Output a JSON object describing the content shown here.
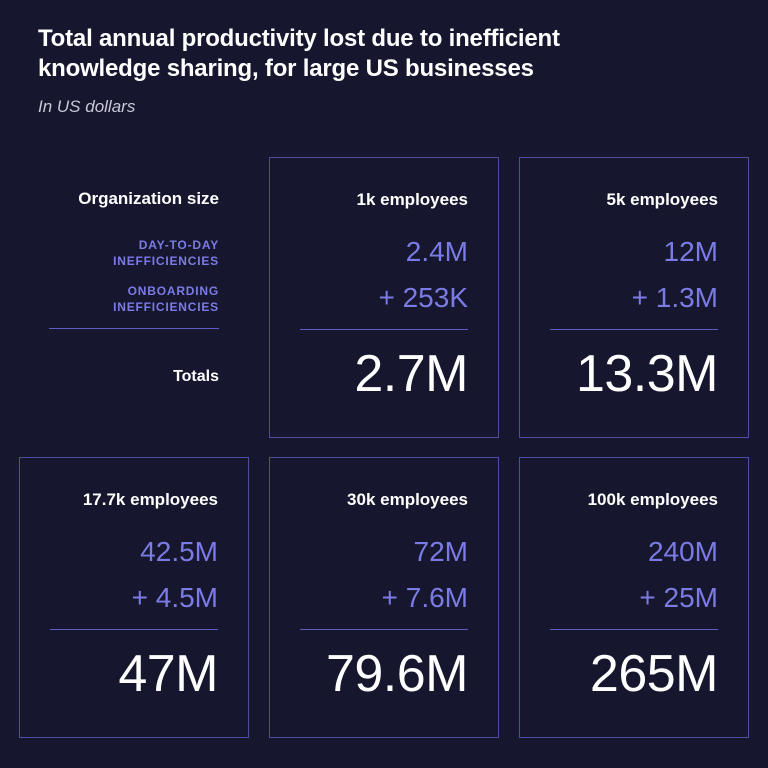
{
  "chart_data": {
    "type": "table",
    "title": "Total annual productivity lost due to inefficient knowledge sharing, for large US businesses",
    "subtitle": "In US dollars",
    "row_header": "Organization size",
    "row_labels": {
      "day_to_day": "DAY-TO-DAY INEFFICIENCIES",
      "onboarding": "ONBOARDING INEFFICIENCIES",
      "totals": "Totals"
    },
    "columns": [
      {
        "header": "1k employees",
        "day_to_day": "2.4M",
        "onboarding": "+ 253K",
        "total": "2.7M"
      },
      {
        "header": "5k employees",
        "day_to_day": "12M",
        "onboarding": "+ 1.3M",
        "total": "13.3M"
      },
      {
        "header": "17.7k employees",
        "day_to_day": "42.5M",
        "onboarding": "+ 4.5M",
        "total": "47M"
      },
      {
        "header": "30k employees",
        "day_to_day": "72M",
        "onboarding": "+ 7.6M",
        "total": "79.6M"
      },
      {
        "header": "100k employees",
        "day_to_day": "240M",
        "onboarding": "+ 25M",
        "total": "265M"
      }
    ],
    "colors": {
      "background": "#16162e",
      "accent": "#7b7be6",
      "border": "#4f4f9e",
      "text": "#ffffff"
    }
  }
}
